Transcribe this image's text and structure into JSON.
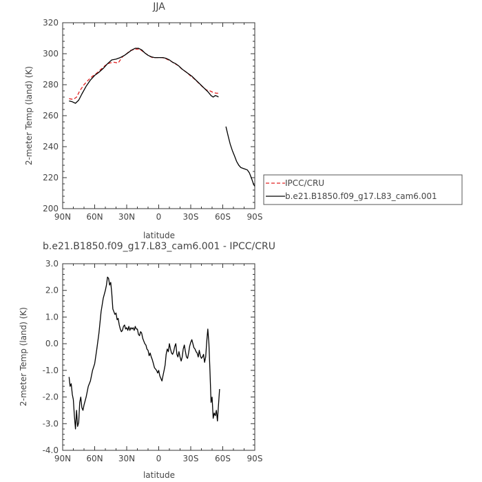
{
  "chart_data": [
    {
      "type": "line",
      "title": "JJA",
      "xlabel": "latitude",
      "ylabel": "2-meter Temp (land) (K)",
      "xlim": [
        90,
        -90
      ],
      "ylim": [
        200,
        320
      ],
      "x_ticks": [
        90,
        60,
        30,
        0,
        -30,
        -60,
        -90
      ],
      "x_tick_labels": [
        "90N",
        "60N",
        "30N",
        "0",
        "30S",
        "60S",
        "90S"
      ],
      "y_ticks": [
        200,
        220,
        240,
        260,
        280,
        300,
        320
      ],
      "y_tick_labels": [
        "200",
        "220",
        "240",
        "260",
        "280",
        "300",
        "320"
      ],
      "legend_position": "right",
      "series": [
        {
          "name": "IPCC/CRU",
          "color": "#e02020",
          "dash": true,
          "points": [
            [
              84,
              271
            ],
            [
              80,
              270.5
            ],
            [
              77,
              272
            ],
            [
              74,
              276
            ],
            [
              70,
              280
            ],
            [
              66,
              283
            ],
            [
              62,
              285.5
            ],
            [
              58,
              287.5
            ],
            [
              54,
              290
            ],
            [
              50,
              292.5
            ],
            [
              46,
              294
            ],
            [
              42,
              294.5
            ],
            [
              38,
              294
            ],
            [
              34,
              298
            ],
            [
              30,
              300
            ],
            [
              27,
              302
            ],
            [
              24,
              302.5
            ],
            [
              21,
              303
            ],
            [
              18,
              303
            ],
            [
              15,
              301.5
            ],
            [
              12,
              300
            ],
            [
              9,
              298.5
            ],
            [
              6,
              297.5
            ],
            [
              3,
              297.5
            ],
            [
              0,
              297.5
            ],
            [
              -3,
              297.5
            ],
            [
              -6,
              297
            ],
            [
              -9,
              296
            ],
            [
              -12,
              295
            ],
            [
              -15,
              293.5
            ],
            [
              -18,
              292.5
            ],
            [
              -21,
              290.5
            ],
            [
              -24,
              289
            ],
            [
              -27,
              287.5
            ],
            [
              -30,
              285.5
            ],
            [
              -33,
              284
            ],
            [
              -36,
              282
            ],
            [
              -39,
              280
            ],
            [
              -42,
              278
            ],
            [
              -45,
              276.5
            ],
            [
              -48,
              276
            ],
            [
              -51,
              275
            ],
            [
              -54,
              274.5
            ],
            [
              -56,
              274.5
            ]
          ]
        },
        {
          "name": "b.e21.B1850.f09_g17.L83_cam6.001",
          "color": "#000000",
          "dash": false,
          "segments": [
            [
              [
                84,
                269.5
              ],
              [
                81,
                269
              ],
              [
                78,
                268
              ],
              [
                75,
                270
              ],
              [
                72,
                274
              ],
              [
                68,
                279
              ],
              [
                64,
                283
              ],
              [
                60,
                286
              ],
              [
                56,
                288
              ],
              [
                52,
                290.5
              ],
              [
                48,
                293.5
              ],
              [
                44,
                296
              ],
              [
                40,
                296.5
              ],
              [
                36,
                297.5
              ],
              [
                32,
                299
              ],
              [
                28,
                301
              ],
              [
                25,
                302.5
              ],
              [
                22,
                303.5
              ],
              [
                19,
                303.5
              ],
              [
                16,
                302.5
              ],
              [
                13,
                300.5
              ],
              [
                10,
                299
              ],
              [
                7,
                298
              ],
              [
                4,
                297.5
              ],
              [
                0,
                297.5
              ],
              [
                -4,
                297.5
              ],
              [
                -7,
                297
              ],
              [
                -10,
                296
              ],
              [
                -13,
                294.5
              ],
              [
                -16,
                293.5
              ],
              [
                -19,
                292
              ],
              [
                -22,
                290
              ],
              [
                -25,
                288.5
              ],
              [
                -28,
                287
              ],
              [
                -31,
                285.5
              ],
              [
                -34,
                283.5
              ],
              [
                -37,
                281.5
              ],
              [
                -40,
                279.5
              ],
              [
                -43,
                277.5
              ],
              [
                -46,
                275.5
              ],
              [
                -49,
                273
              ],
              [
                -51,
                272
              ],
              [
                -53,
                273
              ],
              [
                -55,
                272.5
              ],
              [
                -56,
                272
              ]
            ],
            [
              [
                -63,
                253
              ],
              [
                -65,
                247
              ],
              [
                -67,
                241.5
              ],
              [
                -69,
                237.5
              ],
              [
                -71,
                234
              ],
              [
                -73,
                230.5
              ],
              [
                -75,
                228
              ],
              [
                -77,
                226.5
              ],
              [
                -79,
                226
              ],
              [
                -81,
                225.5
              ],
              [
                -83,
                225
              ],
              [
                -85,
                223
              ],
              [
                -87,
                219.5
              ],
              [
                -89,
                215.5
              ],
              [
                -90,
                214.5
              ]
            ]
          ]
        }
      ]
    },
    {
      "type": "line",
      "title": "b.e21.B1850.f09_g17.L83_cam6.001 - IPCC/CRU",
      "xlabel": "latitude",
      "ylabel": "2-meter Temp (land) (K)",
      "xlim": [
        90,
        -90
      ],
      "ylim": [
        -4.0,
        3.0
      ],
      "x_ticks": [
        90,
        60,
        30,
        0,
        -30,
        -60,
        -90
      ],
      "x_tick_labels": [
        "90N",
        "60N",
        "30N",
        "0",
        "30S",
        "60S",
        "90S"
      ],
      "y_ticks": [
        -4,
        -3,
        -2,
        -1,
        0,
        1,
        2,
        3
      ],
      "y_tick_labels": [
        "-4.0",
        "-3.0",
        "-2.0",
        "-1.0",
        "0.0",
        "1.0",
        "2.0",
        "3.0"
      ],
      "series": [
        {
          "color": "#000000",
          "dash": false,
          "points": [
            [
              84,
              -1.25
            ],
            [
              83,
              -1.6
            ],
            [
              82,
              -1.5
            ],
            [
              81,
              -1.9
            ],
            [
              80,
              -2.1
            ],
            [
              79,
              -2.7
            ],
            [
              78,
              -3.2
            ],
            [
              77,
              -2.5
            ],
            [
              76,
              -3.1
            ],
            [
              75,
              -2.95
            ],
            [
              74,
              -2.2
            ],
            [
              73,
              -2.0
            ],
            [
              72,
              -2.4
            ],
            [
              71,
              -2.5
            ],
            [
              70,
              -2.3
            ],
            [
              68,
              -2.0
            ],
            [
              66,
              -1.6
            ],
            [
              64,
              -1.4
            ],
            [
              62,
              -1.0
            ],
            [
              60,
              -0.75
            ],
            [
              58,
              -0.2
            ],
            [
              56,
              0.4
            ],
            [
              54,
              1.2
            ],
            [
              52,
              1.7
            ],
            [
              50,
              2.0
            ],
            [
              49,
              2.2
            ],
            [
              48,
              2.5
            ],
            [
              47,
              2.45
            ],
            [
              46,
              2.2
            ],
            [
              45,
              2.3
            ],
            [
              44,
              1.9
            ],
            [
              43,
              1.3
            ],
            [
              42,
              1.2
            ],
            [
              41,
              1.1
            ],
            [
              40,
              1.15
            ],
            [
              39,
              0.9
            ],
            [
              38,
              0.95
            ],
            [
              37,
              0.7
            ],
            [
              36,
              0.55
            ],
            [
              35,
              0.45
            ],
            [
              34,
              0.5
            ],
            [
              33,
              0.65
            ],
            [
              32,
              0.7
            ],
            [
              31,
              0.55
            ],
            [
              30,
              0.6
            ],
            [
              29,
              0.5
            ],
            [
              28,
              0.65
            ],
            [
              27,
              0.5
            ],
            [
              26,
              0.6
            ],
            [
              25,
              0.55
            ],
            [
              24,
              0.6
            ],
            [
              23,
              0.5
            ],
            [
              22,
              0.65
            ],
            [
              21,
              0.55
            ],
            [
              20,
              0.55
            ],
            [
              19,
              0.35
            ],
            [
              18,
              0.3
            ],
            [
              17,
              0.45
            ],
            [
              16,
              0.4
            ],
            [
              15,
              0.2
            ],
            [
              14,
              0.1
            ],
            [
              13,
              0.0
            ],
            [
              12,
              -0.05
            ],
            [
              11,
              -0.2
            ],
            [
              10,
              -0.25
            ],
            [
              9,
              -0.45
            ],
            [
              8,
              -0.35
            ],
            [
              7,
              -0.5
            ],
            [
              6,
              -0.6
            ],
            [
              5,
              -0.75
            ],
            [
              4,
              -0.9
            ],
            [
              3,
              -0.95
            ],
            [
              2,
              -1.0
            ],
            [
              1,
              -1.1
            ],
            [
              0,
              -1.0
            ],
            [
              -1,
              -1.2
            ],
            [
              -2,
              -1.3
            ],
            [
              -3,
              -1.4
            ],
            [
              -4,
              -1.2
            ],
            [
              -5,
              -1.0
            ],
            [
              -6,
              -0.8
            ],
            [
              -7,
              -0.4
            ],
            [
              -8,
              -0.2
            ],
            [
              -9,
              -0.3
            ],
            [
              -10,
              0.0
            ],
            [
              -11,
              -0.2
            ],
            [
              -12,
              -0.35
            ],
            [
              -13,
              -0.4
            ],
            [
              -14,
              -0.3
            ],
            [
              -15,
              -0.1
            ],
            [
              -16,
              0.0
            ],
            [
              -17,
              -0.4
            ],
            [
              -18,
              -0.5
            ],
            [
              -19,
              -0.3
            ],
            [
              -20,
              -0.5
            ],
            [
              -21,
              -0.65
            ],
            [
              -22,
              -0.5
            ],
            [
              -23,
              -0.2
            ],
            [
              -24,
              -0.05
            ],
            [
              -25,
              -0.3
            ],
            [
              -26,
              -0.5
            ],
            [
              -27,
              -0.55
            ],
            [
              -28,
              -0.35
            ],
            [
              -29,
              -0.1
            ],
            [
              -30,
              0.05
            ],
            [
              -31,
              0.15
            ],
            [
              -32,
              0.0
            ],
            [
              -33,
              -0.15
            ],
            [
              -34,
              -0.2
            ],
            [
              -35,
              -0.3
            ],
            [
              -36,
              -0.35
            ],
            [
              -37,
              -0.5
            ],
            [
              -38,
              -0.25
            ],
            [
              -39,
              -0.45
            ],
            [
              -40,
              -0.55
            ],
            [
              -41,
              -0.5
            ],
            [
              -42,
              -0.4
            ],
            [
              -43,
              -0.7
            ],
            [
              -44,
              -0.5
            ],
            [
              -45,
              0.1
            ],
            [
              -46,
              0.55
            ],
            [
              -47,
              0.0
            ],
            [
              -48,
              -1.0
            ],
            [
              -49,
              -2.2
            ],
            [
              -50,
              -2.0
            ],
            [
              -51,
              -2.8
            ],
            [
              -52,
              -2.6
            ],
            [
              -53,
              -2.7
            ],
            [
              -54,
              -2.5
            ],
            [
              -55,
              -2.9
            ],
            [
              -56,
              -2.3
            ],
            [
              -57,
              -1.7
            ]
          ]
        }
      ]
    }
  ]
}
